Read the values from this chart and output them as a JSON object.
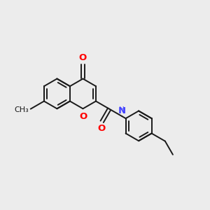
{
  "bg_color": "#ececec",
  "bond_color": "#1a1a1a",
  "bond_width": 1.4,
  "O_color": "#ff0000",
  "N_color": "#4444ff",
  "C_color": "#1a1a1a",
  "font_size": 8.5,
  "fig_size": [
    3.0,
    3.0
  ],
  "dpi": 100,
  "xlim": [
    -3.5,
    3.8
  ],
  "ylim": [
    -2.5,
    2.8
  ]
}
